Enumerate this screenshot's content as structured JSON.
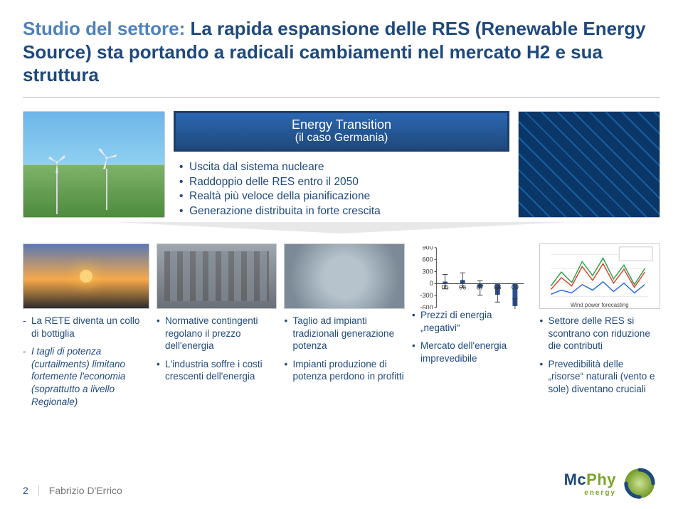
{
  "title_lead": "Studio del settore:",
  "title_rest": " La rapida espansione delle RES (Renewable Energy Source) sta portando a radicali cambiamenti nel mercato H2 e sua struttura",
  "banner_line1": "Energy Transition",
  "banner_line2": "(il caso Germania)",
  "hero_bullets": [
    "Uscita dal sistema nucleare",
    "Raddoppio delle RES entro il 2050",
    "Realtà più veloce della pianificazione",
    "Generazione distribuita in forte crescita"
  ],
  "columns": {
    "c1": {
      "items": [
        "La RETE diventa un collo di bottiglia",
        "I tagli di potenza (curtailments) limitano fortemente l'economia (soprattutto a livello Regionale)"
      ]
    },
    "c2": {
      "items": [
        "Normative contingenti regolano il prezzo dell'energia",
        "L'industria soffre i costi crescenti dell'energia"
      ]
    },
    "c3": {
      "items": [
        "Taglio ad impianti tradizionali generazione potenza",
        "Impianti produzione di potenza perdono in profitti"
      ]
    },
    "c4": {
      "items": [
        "Prezzi di energia „negativi“",
        "Mercato dell'energia imprevedibile"
      ]
    },
    "c5": {
      "items": [
        "Settore delle RES si scontrano con riduzione die contributi",
        "Prevedibilità delle „risorse“ naturali (vento e sole) diventano cruciali"
      ]
    }
  },
  "barchart": {
    "categories": [
      "05",
      "06",
      "07",
      "08",
      "09"
    ],
    "values": [
      50,
      90,
      -110,
      -280,
      -560
    ],
    "axis_ticks": [
      900,
      600,
      300,
      0,
      -300,
      -600
    ],
    "ylim": [
      -600,
      900
    ],
    "bar_color": "#2a4f8f",
    "error_color": "#333333",
    "axis_color": "#333333",
    "axis_fontsize": 10
  },
  "forecast_caption": "Wind power forecasting",
  "footer": {
    "page": "2",
    "author": "Fabrizio D'Errico"
  },
  "logo": {
    "mc": "Mc",
    "phy": "Phy",
    "sub": "energy"
  },
  "colors": {
    "title": "#1f497d",
    "title_lead": "#4f81bd",
    "banner_bg_top": "#2b66b0",
    "banner_bg_bottom": "#1f497d",
    "body_text": "#1f497d"
  }
}
